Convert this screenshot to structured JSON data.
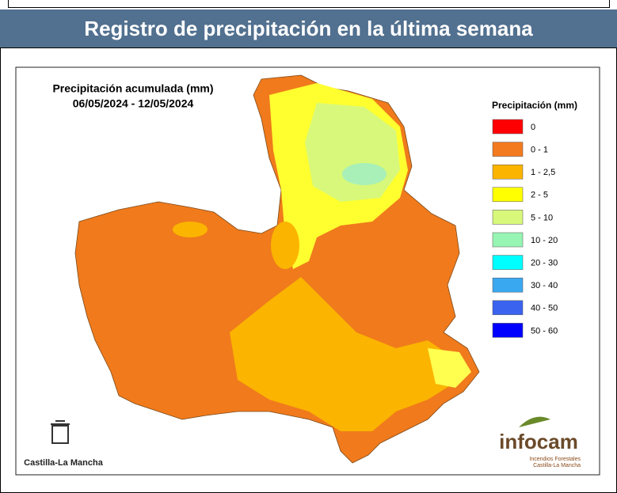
{
  "header": {
    "title": "Registro de precipitación en la última semana"
  },
  "map": {
    "title": "Precipitación acumulada (mm)",
    "date_range": "06/05/2024 - 12/05/2024"
  },
  "legend": {
    "title": "Precipitación (mm)",
    "items": [
      {
        "label": "0",
        "color": "#ff0000"
      },
      {
        "label": "0 - 1",
        "color": "#f47a1f"
      },
      {
        "label": "1 - 2,5",
        "color": "#fbb400"
      },
      {
        "label": "2 - 5",
        "color": "#ffff00"
      },
      {
        "label": "5 - 10",
        "color": "#d7f87a"
      },
      {
        "label": "10 - 20",
        "color": "#97f5b3"
      },
      {
        "label": "20 - 30",
        "color": "#00ffff"
      },
      {
        "label": "30 - 40",
        "color": "#3aa8f0"
      },
      {
        "label": "40 - 50",
        "color": "#3a63f0"
      },
      {
        "label": "50 - 60",
        "color": "#0000ff"
      }
    ]
  },
  "logos": {
    "left": "Castilla-La Mancha",
    "right": {
      "name": "infocam",
      "line1": "Incendios Forestales",
      "line2": "Castilla-La Mancha"
    }
  }
}
